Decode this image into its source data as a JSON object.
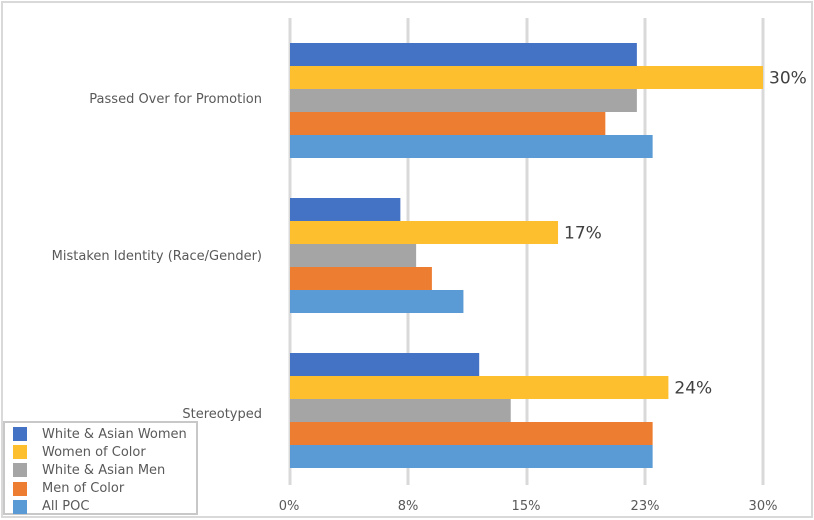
{
  "chart_data": {
    "type": "bar",
    "orientation": "horizontal",
    "title": "",
    "xlabel": "",
    "ylabel": "",
    "xlim": [
      0,
      30
    ],
    "x_ticks": [
      "0%",
      "8%",
      "15%",
      "23%",
      "30%"
    ],
    "x_tick_values": [
      0,
      7.5,
      15,
      22.5,
      30
    ],
    "grid": true,
    "legend_position": "bottom-left",
    "categories": [
      "Passed Over for Promotion",
      "Mistaken Identity (Race/Gender)",
      "Stereotyped"
    ],
    "series": [
      {
        "name": "White & Asian Women",
        "color": "#4472c4",
        "values": [
          22,
          7,
          12
        ]
      },
      {
        "name": "Women of Color",
        "color": "#fdbf2d",
        "values": [
          30,
          17,
          24
        ]
      },
      {
        "name": "White & Asian Men",
        "color": "#a5a5a5",
        "values": [
          22,
          8,
          14
        ]
      },
      {
        "name": "Men of Color",
        "color": "#ed7d31",
        "values": [
          20,
          9,
          23
        ]
      },
      {
        "name": "All POC",
        "color": "#5b9bd5",
        "values": [
          23,
          11,
          23
        ]
      }
    ],
    "data_labels": [
      {
        "series": "Women of Color",
        "category": "Passed Over for Promotion",
        "text": "30%"
      },
      {
        "series": "Women of Color",
        "category": "Mistaken Identity (Race/Gender)",
        "text": "17%"
      },
      {
        "series": "Women of Color",
        "category": "Stereotyped",
        "text": "24%"
      }
    ]
  }
}
